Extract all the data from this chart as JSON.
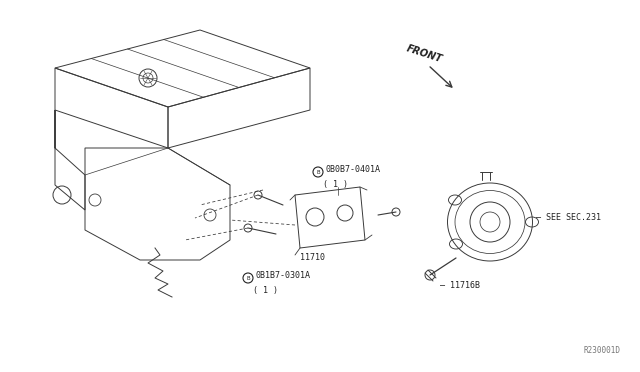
{
  "background_color": "#ffffff",
  "line_color": "#3a3a3a",
  "text_color": "#222222",
  "lw": 0.7,
  "labels": {
    "front": "FRONT",
    "part1_top": "® 0B0B7-0401A",
    "part1_bot": "  ( 1 )",
    "part2": "11710",
    "part3_top": "® 0B1B7-0301A",
    "part3_bot": "  ( 1 )",
    "part4": "— 11716B",
    "see_sec": "— SEE SEC.231",
    "ref": "R230001D"
  },
  "figsize": [
    6.4,
    3.72
  ],
  "dpi": 100
}
